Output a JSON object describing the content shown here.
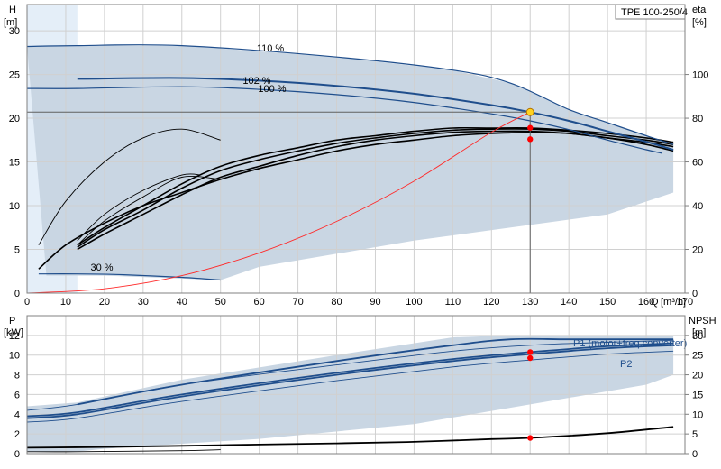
{
  "chart_data": [
    {
      "type": "line",
      "panel": "head-efficiency",
      "model": "TPE 100-250/4",
      "xlabel": "Q",
      "xunit": "[m³/h]",
      "ylabel_left": "H",
      "yunit_left": "[m]",
      "ylabel_right": "eta",
      "yunit_right": "[%]",
      "xlim": [
        0,
        170
      ],
      "ylim_left": [
        0,
        33
      ],
      "ylim_right": [
        0,
        132
      ],
      "x_ticks": [
        "0",
        "10",
        "20",
        "30",
        "40",
        "50",
        "60",
        "70",
        "80",
        "90",
        "100",
        "110",
        "120",
        "130",
        "140",
        "150",
        "160",
        "170"
      ],
      "y_ticks_left": [
        "0",
        "5",
        "10",
        "15",
        "20",
        "25",
        "30"
      ],
      "y_ticks_right": [
        "0",
        "20",
        "40",
        "60",
        "80",
        "100"
      ],
      "grid": true,
      "colors": {
        "envelope": "#c9d6e3",
        "envelope_light": "#e4eef8",
        "head": "#1f4e8c",
        "system": "#ff2a2a",
        "efficiency": "#000000",
        "duty_point": "#ff0000",
        "operating_point": "#ffd21f"
      },
      "envelope": {
        "x": [
          0,
          13,
          13,
          40,
          80,
          110,
          125,
          140,
          150,
          160,
          167,
          167,
          150,
          100,
          60,
          50,
          20,
          13,
          5
        ],
        "y": [
          28.2,
          28.2,
          28.3,
          28.3,
          27.0,
          25.5,
          24.0,
          21.0,
          19.5,
          18.0,
          17.0,
          11.5,
          9.0,
          6.0,
          3.0,
          1.5,
          2.0,
          2.0,
          2.0
        ]
      },
      "envelope_light_x_max": 13,
      "head_curves": [
        {
          "name": "110 %",
          "x": [
            0,
            13,
            40,
            80,
            110,
            125,
            140,
            150,
            160,
            167
          ],
          "y": [
            28.2,
            28.3,
            28.3,
            27.0,
            25.5,
            24.0,
            21.0,
            19.5,
            18.0,
            17.0
          ]
        },
        {
          "name": "102 %",
          "x": [
            13,
            40,
            60,
            80,
            100,
            120,
            130,
            140,
            150,
            160,
            167
          ],
          "y": [
            24.5,
            24.6,
            24.3,
            23.7,
            22.8,
            21.5,
            20.7,
            19.7,
            18.5,
            17.3,
            16.4
          ]
        },
        {
          "name": "100 %",
          "x": [
            0,
            13,
            40,
            60,
            80,
            100,
            120,
            130,
            140,
            150,
            160,
            164
          ],
          "y": [
            23.4,
            23.4,
            23.6,
            23.3,
            22.7,
            21.8,
            20.5,
            19.7,
            18.7,
            17.5,
            16.4,
            16.0
          ]
        },
        {
          "name": "30 %",
          "x": [
            3,
            13,
            25,
            40,
            50
          ],
          "y": [
            2.2,
            2.2,
            2.1,
            1.8,
            1.5
          ]
        }
      ],
      "system_curve": {
        "x": [
          0,
          20,
          40,
          60,
          80,
          100,
          120,
          130
        ],
        "y": [
          0,
          0.5,
          2.0,
          4.6,
          8.2,
          12.8,
          18.4,
          20.7
        ]
      },
      "efficiency_curves": [
        {
          "x": [
            3,
            10,
            20,
            30,
            40,
            50,
            60,
            70,
            80,
            90,
            100,
            110,
            120,
            130,
            140,
            150,
            160,
            167
          ],
          "y": [
            11,
            22,
            32,
            40,
            46,
            52,
            57,
            61,
            65,
            68,
            70,
            72,
            73,
            73.5,
            73,
            71,
            68,
            65
          ]
        },
        {
          "x": [
            13,
            20,
            30,
            40,
            50,
            60,
            70,
            80,
            90,
            100,
            110,
            120,
            130,
            140,
            150,
            160,
            167
          ],
          "y": [
            20,
            27,
            36,
            45,
            53,
            58,
            63,
            67,
            70,
            72,
            73.5,
            74,
            74,
            73,
            71,
            69,
            67
          ]
        },
        {
          "x": [
            13,
            20,
            30,
            40,
            50,
            60,
            70,
            80,
            90,
            100,
            110,
            120,
            130,
            140,
            150,
            160,
            167
          ],
          "y": [
            21,
            29,
            38,
            48,
            56,
            61,
            65,
            68.5,
            71,
            73,
            74.5,
            75,
            75,
            74,
            72,
            70,
            68
          ]
        },
        {
          "x": [
            13,
            20,
            30,
            40,
            50,
            60,
            70,
            80,
            90,
            100,
            110,
            120,
            130,
            140,
            150,
            160,
            167
          ],
          "y": [
            22,
            30,
            40,
            50,
            58,
            63,
            66.5,
            70,
            72,
            74,
            75.5,
            75.5,
            75.5,
            74.5,
            73,
            71,
            69
          ]
        },
        {
          "x": [
            3,
            10,
            20,
            30,
            40,
            50
          ],
          "y": [
            22,
            42,
            60,
            71,
            75,
            70
          ]
        },
        {
          "x": [
            13,
            20,
            30,
            40,
            50
          ],
          "y": [
            22,
            33,
            44,
            53,
            52
          ]
        },
        {
          "x": [
            13,
            20,
            30,
            40,
            45
          ],
          "y": [
            24,
            36,
            47,
            54,
            54
          ]
        }
      ],
      "duty_line": {
        "x": 130,
        "h": 20.7
      },
      "operating_points": [
        {
          "x": 130,
          "y": 20.7,
          "kind": "operating"
        },
        {
          "x": 130,
          "y": 18.9,
          "kind": "duty"
        },
        {
          "x": 130,
          "y": 17.6,
          "kind": "duty"
        }
      ]
    },
    {
      "type": "line",
      "panel": "power-npsh",
      "ylabel_left": "P",
      "yunit_left": "[kW]",
      "ylabel_right": "NPSH",
      "yunit_right": "[m]",
      "xlim": [
        0,
        170
      ],
      "ylim_left": [
        0,
        14
      ],
      "ylim_right": [
        0,
        35
      ],
      "y_ticks_left": [
        "0",
        "2",
        "4",
        "6",
        "8",
        "10",
        "12"
      ],
      "y_ticks_right": [
        "0",
        "5",
        "10",
        "15",
        "20",
        "25",
        "30"
      ],
      "grid": true,
      "envelope": {
        "x": [
          0,
          13,
          40,
          80,
          110,
          125,
          140,
          160,
          167,
          167,
          160,
          130,
          100,
          60,
          20,
          13,
          0
        ],
        "y": [
          4.8,
          5.2,
          7.5,
          10.0,
          11.8,
          12.0,
          12.0,
          12.0,
          12.0,
          8.0,
          7.0,
          5.0,
          3.0,
          1.5,
          0.5,
          0.2,
          0.2
        ]
      },
      "power_curves": [
        {
          "name": "P1 (motor+freq.converter)",
          "x": [
            13,
            40,
            80,
            110,
            125,
            140,
            160,
            167
          ],
          "y": [
            5.0,
            7.0,
            9.4,
            11.0,
            11.6,
            11.6,
            11.6,
            11.6
          ]
        },
        {
          "name": "",
          "x": [
            0,
            13,
            40,
            80,
            110,
            130,
            150,
            167
          ],
          "y": [
            3.8,
            4.2,
            6.0,
            8.2,
            9.6,
            10.3,
            10.9,
            11.2
          ]
        },
        {
          "name": "",
          "x": [
            0,
            13,
            40,
            80,
            110,
            130,
            150,
            167
          ],
          "y": [
            3.6,
            4.0,
            5.8,
            8.0,
            9.4,
            10.1,
            10.7,
            11.0
          ]
        },
        {
          "name": "P2",
          "x": [
            0,
            13,
            40,
            80,
            110,
            130,
            150,
            167
          ],
          "y": [
            3.2,
            3.6,
            5.3,
            7.4,
            8.8,
            9.5,
            10.1,
            10.4
          ]
        },
        {
          "name": "",
          "x": [
            0,
            13,
            40,
            80,
            110,
            130,
            150,
            167
          ],
          "y": [
            4.4,
            5.0,
            7.0,
            9.0,
            10.4,
            11.0,
            11.3,
            11.5
          ]
        },
        {
          "name": "",
          "x": [
            0,
            13,
            40,
            50
          ],
          "y": [
            0.2,
            0.2,
            0.3,
            0.4
          ]
        }
      ],
      "npsh_curve": {
        "x": [
          0,
          20,
          40,
          60,
          80,
          100,
          120,
          130,
          150,
          167
        ],
        "y": [
          1.5,
          1.7,
          2.0,
          2.3,
          2.6,
          3.0,
          3.7,
          4.0,
          5.2,
          6.8
        ]
      },
      "duty_points": [
        {
          "x": 130,
          "y": 10.3,
          "axis": "left"
        },
        {
          "x": 130,
          "y": 9.7,
          "axis": "left"
        },
        {
          "x": 130,
          "y": 4.0,
          "axis": "right"
        }
      ]
    }
  ]
}
